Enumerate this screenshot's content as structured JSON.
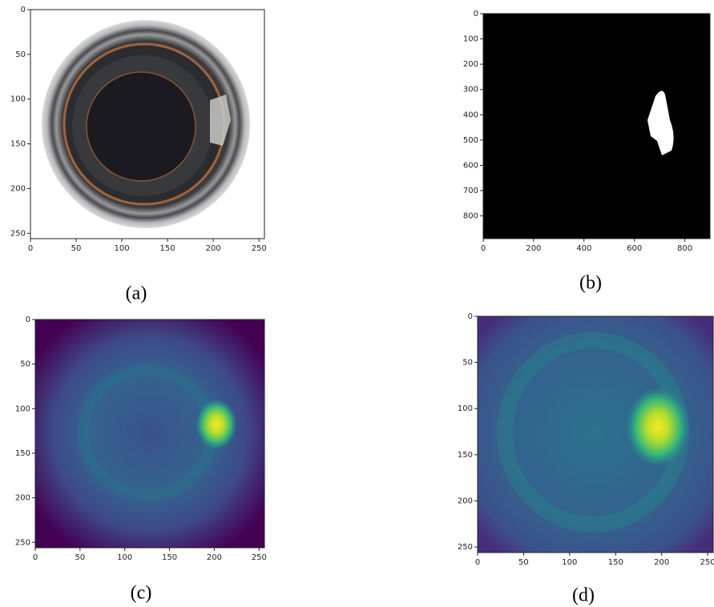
{
  "chart_data": [
    {
      "type": "image",
      "caption": "(a)",
      "xlim": [
        0,
        256
      ],
      "ylim": [
        256,
        0
      ],
      "xticks": [
        0,
        50,
        100,
        150,
        200,
        250
      ],
      "yticks": [
        0,
        50,
        100,
        150,
        200,
        250
      ]
    },
    {
      "type": "image",
      "caption": "(b)",
      "xlim": [
        0,
        900
      ],
      "ylim": [
        890,
        0
      ],
      "xticks": [
        0,
        200,
        400,
        600,
        800
      ],
      "yticks": [
        0,
        100,
        200,
        300,
        400,
        500,
        600,
        700,
        800
      ]
    },
    {
      "type": "image",
      "caption": "(c)",
      "xlim": [
        0,
        256
      ],
      "ylim": [
        256,
        0
      ],
      "xticks": [
        0,
        50,
        100,
        150,
        200,
        250
      ],
      "yticks": [
        0,
        50,
        100,
        150,
        200,
        250
      ]
    },
    {
      "type": "image",
      "caption": "(d)",
      "xlim": [
        0,
        256
      ],
      "ylim": [
        256,
        0
      ],
      "xticks": [
        0,
        50,
        100,
        150,
        200,
        250
      ],
      "yticks": [
        0,
        50,
        100,
        150,
        200,
        250
      ]
    }
  ]
}
